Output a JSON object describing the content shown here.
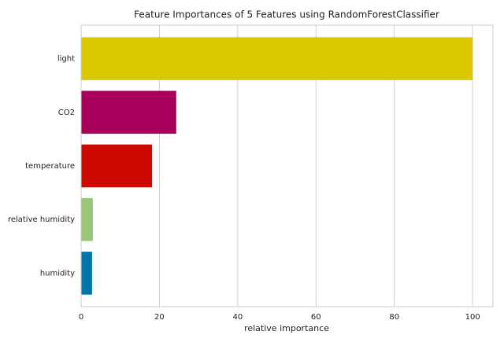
{
  "chart_data": {
    "type": "barh",
    "title": "Feature Importances of 5 Features using RandomForestClassifier",
    "xlabel": "relative importance",
    "categories": [
      "light",
      "CO2",
      "temperature",
      "relative humidity",
      "humidity"
    ],
    "values": [
      100,
      24.3,
      18.1,
      3.0,
      2.8
    ],
    "colors": [
      "#d8c900",
      "#a8005a",
      "#cc0a00",
      "#9cc57c",
      "#0073a8"
    ],
    "xlim": [
      0,
      105.2
    ],
    "xticks": [
      0,
      20,
      40,
      60,
      80,
      100
    ],
    "grid": true
  }
}
